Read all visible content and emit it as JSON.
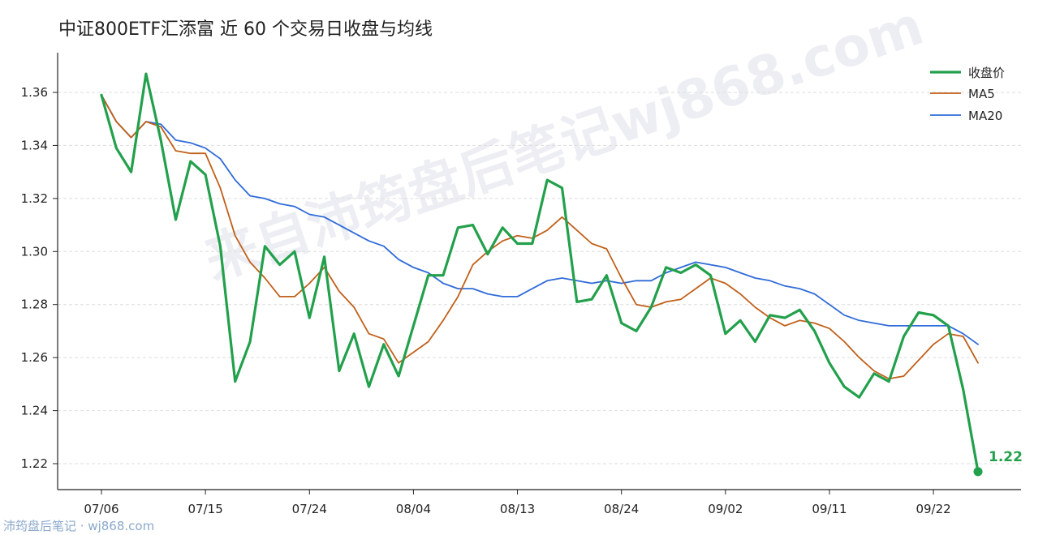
{
  "title": "中证800ETF汇添富 近 60 个交易日收盘与均线",
  "watermark": "来自沛筠盘后笔记wj868.com",
  "footer": "沛筠盘后笔记 · wj868.com",
  "colors": {
    "close": "#22a04b",
    "ma5": "#c0601a",
    "ma20": "#2f6bd8",
    "grid": "#dddddd",
    "axis": "#222222"
  },
  "chart_data": {
    "type": "line",
    "ylim": [
      1.21,
      1.37
    ],
    "yticks": [
      "1.22",
      "1.24",
      "1.26",
      "1.28",
      "1.30",
      "1.32",
      "1.34",
      "1.36"
    ],
    "x_tick_labels": [
      {
        "index": 0,
        "label": "07/06"
      },
      {
        "index": 7,
        "label": "07/15"
      },
      {
        "index": 14,
        "label": "07/24"
      },
      {
        "index": 21,
        "label": "08/04"
      },
      {
        "index": 28,
        "label": "08/13"
      },
      {
        "index": 35,
        "label": "08/24"
      },
      {
        "index": 42,
        "label": "09/02"
      },
      {
        "index": 49,
        "label": "09/11"
      },
      {
        "index": 56,
        "label": "09/22"
      }
    ],
    "grid": "horizontal dashed",
    "legend_position": "top-right",
    "last_value_label": "1.22",
    "series": [
      {
        "name": "收盘价",
        "values": [
          1.359,
          1.339,
          1.33,
          1.367,
          1.342,
          1.312,
          1.334,
          1.329,
          1.302,
          1.251,
          1.266,
          1.302,
          1.295,
          1.3,
          1.275,
          1.298,
          1.255,
          1.269,
          1.249,
          1.265,
          1.253,
          1.272,
          1.291,
          1.291,
          1.309,
          1.31,
          1.299,
          1.309,
          1.303,
          1.303,
          1.327,
          1.324,
          1.281,
          1.282,
          1.291,
          1.273,
          1.27,
          1.279,
          1.294,
          1.292,
          1.295,
          1.291,
          1.269,
          1.274,
          1.266,
          1.276,
          1.275,
          1.278,
          1.27,
          1.258,
          1.249,
          1.245,
          1.254,
          1.251,
          1.268,
          1.277,
          1.276,
          1.272,
          1.248,
          1.217
        ]
      },
      {
        "name": "MA5",
        "values": [
          1.359,
          1.349,
          1.343,
          1.349,
          1.347,
          1.338,
          1.337,
          1.337,
          1.324,
          1.306,
          1.296,
          1.29,
          1.283,
          1.283,
          1.288,
          1.294,
          1.285,
          1.279,
          1.269,
          1.267,
          1.258,
          1.262,
          1.266,
          1.274,
          1.283,
          1.295,
          1.3,
          1.304,
          1.306,
          1.305,
          1.308,
          1.313,
          1.308,
          1.303,
          1.301,
          1.29,
          1.28,
          1.279,
          1.281,
          1.282,
          1.286,
          1.29,
          1.288,
          1.284,
          1.279,
          1.275,
          1.272,
          1.274,
          1.273,
          1.271,
          1.266,
          1.26,
          1.255,
          1.252,
          1.253,
          1.259,
          1.265,
          1.269,
          1.268,
          1.258
        ]
      },
      {
        "name": "MA20",
        "values": [
          1.359,
          1.349,
          1.343,
          1.349,
          1.348,
          1.342,
          1.341,
          1.339,
          1.335,
          1.327,
          1.321,
          1.32,
          1.318,
          1.317,
          1.314,
          1.313,
          1.31,
          1.307,
          1.304,
          1.302,
          1.297,
          1.294,
          1.292,
          1.288,
          1.286,
          1.286,
          1.284,
          1.283,
          1.283,
          1.286,
          1.289,
          1.29,
          1.289,
          1.288,
          1.289,
          1.288,
          1.289,
          1.289,
          1.292,
          1.294,
          1.296,
          1.295,
          1.294,
          1.292,
          1.29,
          1.289,
          1.287,
          1.286,
          1.284,
          1.28,
          1.276,
          1.274,
          1.273,
          1.272,
          1.272,
          1.272,
          1.272,
          1.272,
          1.269,
          1.265
        ]
      }
    ]
  }
}
